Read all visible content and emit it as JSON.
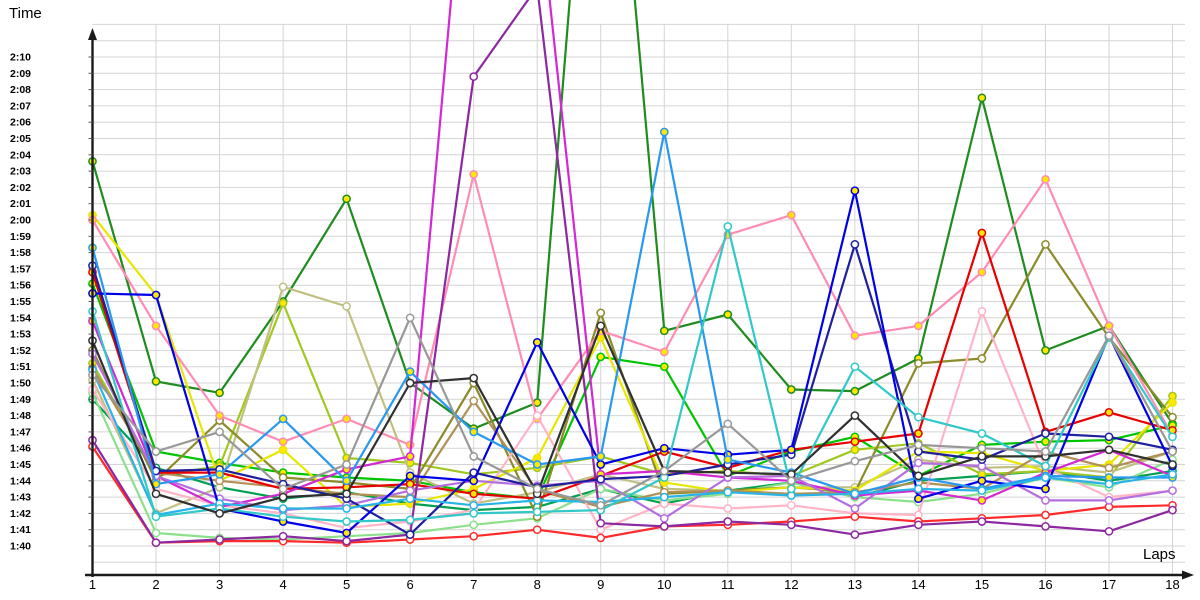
{
  "titles": {
    "y_axis": "Time",
    "x_axis": "Laps"
  },
  "axes": {
    "x_ticks": [
      "1",
      "2",
      "3",
      "4",
      "5",
      "6",
      "7",
      "8",
      "9",
      "10",
      "11",
      "12",
      "13",
      "14",
      "15",
      "16",
      "17",
      "18"
    ],
    "y_ticks": [
      "1:40",
      "1:41",
      "1:42",
      "1:43",
      "1:44",
      "1:45",
      "1:46",
      "1:47",
      "1:48",
      "1:49",
      "1:50",
      "1:51",
      "1:52",
      "1:53",
      "1:54",
      "1:55",
      "1:56",
      "1:57",
      "1:58",
      "1:59",
      "2:00",
      "2:01",
      "2:02",
      "2:03",
      "2:04",
      "2:05",
      "2:06",
      "2:07",
      "2:08",
      "2:09",
      "2:10"
    ],
    "grid_color": "#d4d4d4",
    "axis_color": "#1a1a1a",
    "marker_yellow": "#ffe800",
    "marker_white": "#ffffff"
  },
  "chart_data": {
    "type": "line",
    "title": "Lap times per lap",
    "xlabel": "Laps",
    "ylabel": "Time",
    "x": [
      1,
      2,
      3,
      4,
      5,
      6,
      7,
      8,
      9,
      10,
      11,
      12,
      13,
      14,
      15,
      16,
      17,
      18
    ],
    "y_axis_range": [
      "1:40",
      "2:10"
    ],
    "y_unit": "minutes:seconds, values stored as seconds after 1:00 (e.g. 103.6 = 1:43.6)",
    "grid": "on",
    "legend": "none",
    "series": [
      {
        "name": "forest-green",
        "color": "#1e8c1e",
        "marker": "yellow",
        "values": [
          123.6,
          110.1,
          109.4,
          115.0,
          121.3,
          110.0,
          107.2,
          108.8,
          157.0,
          113.2,
          114.2,
          109.6,
          109.5,
          111.5,
          127.5,
          112.0,
          113.5,
          107.5
        ]
      },
      {
        "name": "bright-green",
        "color": "#00c400",
        "marker": "yellow",
        "values": [
          116.1,
          105.8,
          105.1,
          104.5,
          104.2,
          104.0,
          103.3,
          102.9,
          111.6,
          111.0,
          104.3,
          105.8,
          106.7,
          104.3,
          106.2,
          106.4,
          106.5,
          107.4
        ]
      },
      {
        "name": "emerald",
        "color": "#00a050",
        "marker": "white",
        "values": [
          109.0,
          104.8,
          103.6,
          102.9,
          103.3,
          102.6,
          102.2,
          102.4,
          103.5,
          102.6,
          103.4,
          103.9,
          103.0,
          104.0,
          104.3,
          104.6,
          104.0,
          104.6
        ]
      },
      {
        "name": "light-green",
        "color": "#8ce08c",
        "marker": "white",
        "values": [
          109.4,
          100.8,
          100.5,
          100.4,
          100.6,
          100.8,
          101.3,
          101.7,
          103.5,
          102.8,
          103.2,
          103.9,
          103.0,
          102.7,
          103.2,
          104.2,
          103.6,
          105.3
        ]
      },
      {
        "name": "yellow-green",
        "color": "#a0c820",
        "marker": "yellow",
        "values": [
          111.2,
          104.3,
          104.9,
          114.9,
          105.4,
          105.1,
          104.4,
          104.8,
          105.5,
          104.4,
          104.6,
          104.3,
          105.9,
          106.3,
          104.4,
          104.6,
          104.2,
          109.2
        ]
      },
      {
        "name": "khaki",
        "color": "#c0c080",
        "marker": "white",
        "values": [
          110.2,
          102.0,
          103.6,
          115.9,
          114.7,
          104.5,
          102.6,
          103.3,
          104.4,
          103.5,
          103.4,
          103.6,
          103.6,
          105.3,
          104.8,
          104.9,
          104.5,
          105.8
        ]
      },
      {
        "name": "olive",
        "color": "#8b8b2a",
        "marker": "white",
        "values": [
          112.0,
          104.0,
          107.7,
          104.2,
          103.9,
          103.5,
          110.0,
          101.8,
          114.3,
          103.2,
          103.4,
          103.6,
          103.3,
          111.2,
          111.5,
          118.5,
          112.8,
          107.9
        ]
      },
      {
        "name": "yellow",
        "color": "#e6e600",
        "marker": "yellow",
        "values": [
          120.3,
          115.4,
          104.0,
          105.9,
          102.4,
          102.6,
          103.5,
          105.4,
          112.8,
          103.9,
          103.3,
          103.6,
          103.4,
          105.8,
          105.7,
          104.6,
          105.0,
          108.8
        ]
      },
      {
        "name": "tan",
        "color": "#b09055",
        "marker": "white",
        "values": [
          110.9,
          104.5,
          104.0,
          103.6,
          103.2,
          103.0,
          108.9,
          103.4,
          102.4,
          103.3,
          103.4,
          103.2,
          103.3,
          103.9,
          103.5,
          105.8,
          104.8,
          105.8
        ]
      },
      {
        "name": "pink",
        "color": "#ff8cb4",
        "marker": "yellow",
        "values": [
          120.0,
          113.5,
          108.0,
          106.4,
          107.8,
          106.2,
          122.8,
          107.8,
          113.2,
          111.9,
          119.1,
          120.3,
          112.9,
          113.5,
          116.8,
          122.5,
          113.5,
          106.8
        ]
      },
      {
        "name": "light-pink",
        "color": "#ffb4c8",
        "marker": "white",
        "values": [
          109.6,
          103.5,
          102.5,
          102.0,
          101.1,
          101.5,
          102.2,
          108.0,
          101.0,
          102.6,
          102.3,
          102.5,
          102.0,
          101.9,
          114.4,
          104.8,
          103.0,
          103.4
        ]
      },
      {
        "name": "red",
        "color": "#e80000",
        "marker": "yellow",
        "values": [
          116.8,
          104.5,
          104.5,
          103.5,
          103.6,
          103.8,
          103.2,
          102.9,
          104.3,
          105.8,
          104.8,
          105.9,
          106.4,
          106.9,
          119.2,
          107.0,
          108.2,
          107.1
        ]
      },
      {
        "name": "dark-red",
        "color": "#ff2a2a",
        "marker": "white",
        "values": [
          106.1,
          100.2,
          100.3,
          100.3,
          100.2,
          100.4,
          100.6,
          101.0,
          100.5,
          101.2,
          101.3,
          101.5,
          101.8,
          101.5,
          101.7,
          101.9,
          102.4,
          102.5
        ]
      },
      {
        "name": "magenta",
        "color": "#d428d4",
        "marker": "yellow",
        "values": [
          113.8,
          104.3,
          102.4,
          103.2,
          104.7,
          105.5,
          149.0,
          140.6,
          104.4,
          104.6,
          104.2,
          104.0,
          103.1,
          103.4,
          102.8,
          104.5,
          105.9,
          104.3
        ]
      },
      {
        "name": "violet",
        "color": "#b46ee0",
        "marker": "white",
        "values": [
          111.8,
          104.3,
          102.9,
          102.2,
          102.5,
          103.4,
          104.0,
          103.7,
          104.0,
          101.7,
          104.2,
          104.3,
          102.3,
          105.1,
          104.9,
          102.8,
          102.8,
          103.4
        ]
      },
      {
        "name": "purple",
        "color": "#8c28a0",
        "marker": "white",
        "values": [
          106.5,
          100.2,
          100.4,
          100.6,
          100.3,
          100.7,
          128.8,
          134.3,
          101.4,
          101.2,
          101.5,
          101.3,
          100.7,
          101.3,
          101.5,
          101.2,
          100.9,
          102.2
        ]
      },
      {
        "name": "navy",
        "color": "#1e1ea0",
        "marker": "white",
        "values": [
          117.2,
          104.6,
          104.7,
          103.8,
          102.9,
          100.7,
          104.5,
          103.6,
          104.1,
          104.3,
          105.0,
          105.6,
          118.5,
          105.8,
          105.3,
          106.9,
          106.7,
          105.9
        ]
      },
      {
        "name": "blue",
        "color": "#0000e8",
        "marker": "yellow",
        "values": [
          115.5,
          115.4,
          102.3,
          101.5,
          100.8,
          104.3,
          104.0,
          112.5,
          105.0,
          106.0,
          105.6,
          105.9,
          121.8,
          102.9,
          104.0,
          103.5,
          112.9,
          104.9
        ]
      },
      {
        "name": "sky-blue",
        "color": "#2898f0",
        "marker": "yellow",
        "values": [
          118.3,
          103.8,
          104.4,
          107.8,
          104.0,
          110.7,
          107.0,
          105.0,
          105.5,
          125.4,
          105.3,
          104.5,
          103.2,
          104.2,
          103.5,
          104.3,
          104.2,
          104.2
        ]
      },
      {
        "name": "light-cyan",
        "color": "#28b4e6",
        "marker": "white",
        "values": [
          110.8,
          101.9,
          102.6,
          102.3,
          102.3,
          102.9,
          102.5,
          102.8,
          102.7,
          103.0,
          103.3,
          103.1,
          103.2,
          103.5,
          103.4,
          104.2,
          103.8,
          104.4
        ]
      },
      {
        "name": "turquoise",
        "color": "#30c8c8",
        "marker": "white",
        "values": [
          114.4,
          101.8,
          102.3,
          101.8,
          101.5,
          101.6,
          102.0,
          102.1,
          102.2,
          104.2,
          119.6,
          103.5,
          111.0,
          107.9,
          106.9,
          104.9,
          112.8,
          106.7
        ]
      },
      {
        "name": "black",
        "color": "#303030",
        "marker": "white",
        "values": [
          112.6,
          103.2,
          102.0,
          103.0,
          103.2,
          110.0,
          110.3,
          103.2,
          113.5,
          104.6,
          104.5,
          104.4,
          108.0,
          104.3,
          105.5,
          105.5,
          105.9,
          105.0
        ]
      },
      {
        "name": "gray",
        "color": "#989898",
        "marker": "white",
        "values": [
          110.5,
          105.8,
          107.0,
          103.5,
          105.0,
          114.0,
          105.5,
          103.5,
          102.5,
          104.6,
          107.5,
          104.0,
          105.2,
          106.2,
          106.0,
          105.8,
          112.9,
          105.8
        ]
      }
    ]
  }
}
